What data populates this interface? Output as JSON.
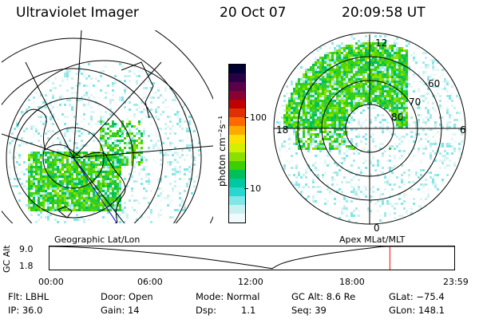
{
  "header": {
    "instrument": "Ultraviolet Imager",
    "date": "20 Oct 07",
    "time": "20:09:58 UT"
  },
  "left_panel": {
    "label": "Geographic Lat/Lon"
  },
  "right_panel": {
    "label": "Apex MLat/MLT",
    "mlt_labels": [
      "12",
      "18",
      "6",
      "0"
    ],
    "mlat_labels": [
      "60",
      "70",
      "80"
    ]
  },
  "colorbar": {
    "unit_label": "photon cm⁻²s⁻¹",
    "ticks": [
      "100",
      "10"
    ],
    "colors": [
      "#000033",
      "#2a0045",
      "#5a004a",
      "#8a0030",
      "#c00000",
      "#e03000",
      "#ff6a00",
      "#ffaa00",
      "#ffe000",
      "#d4f000",
      "#8ce000",
      "#3cd000",
      "#00c05a",
      "#00c8a0",
      "#28d8d0",
      "#80e6e6",
      "#c8f0f0",
      "#f0fafa"
    ]
  },
  "altitude_plot": {
    "ylabel": "GC Alt",
    "y_ticks": [
      "9.0",
      "1.8"
    ],
    "x_ticks": [
      "00:00",
      "06:00",
      "12:00",
      "18:00",
      "23:59"
    ],
    "current_time_marker": "20:10",
    "marker_color": "#ff0000"
  },
  "footer": {
    "filter": "Flt: LBHL",
    "ip": "IP: 36.0",
    "door": "Door: Open",
    "gain": "Gain: 14",
    "mode": "Mode: Normal",
    "dsp_label": "Dsp:",
    "dsp_value": "1.1",
    "gc_alt": "GC Alt: 8.6 Re",
    "seq": "Seq: 39",
    "glat": "GLat: −75.4",
    "glon": "GLon: 148.1"
  }
}
